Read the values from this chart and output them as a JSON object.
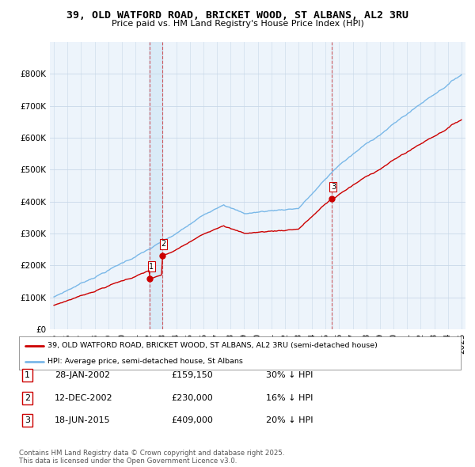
{
  "title1": "39, OLD WATFORD ROAD, BRICKET WOOD, ST ALBANS, AL2 3RU",
  "title2": "Price paid vs. HM Land Registry's House Price Index (HPI)",
  "legend_line1": "39, OLD WATFORD ROAD, BRICKET WOOD, ST ALBANS, AL2 3RU (semi-detached house)",
  "legend_line2": "HPI: Average price, semi-detached house, St Albans",
  "footer": "Contains HM Land Registry data © Crown copyright and database right 2025.\nThis data is licensed under the Open Government Licence v3.0.",
  "transactions": [
    {
      "num": 1,
      "date": "28-JAN-2002",
      "price": 159150,
      "pct": "30% ↓ HPI",
      "x_year": 2002.07
    },
    {
      "num": 2,
      "date": "12-DEC-2002",
      "price": 230000,
      "pct": "16% ↓ HPI",
      "x_year": 2002.95
    },
    {
      "num": 3,
      "date": "18-JUN-2015",
      "price": 409000,
      "pct": "20% ↓ HPI",
      "x_year": 2015.46
    }
  ],
  "sale_color": "#cc0000",
  "hpi_color": "#7ab8e8",
  "vline_color": "#cc0000",
  "shade_color": "#d8eaf7",
  "background_color": "#ffffff",
  "plot_bg_color": "#edf4fb",
  "grid_color": "#c8d8e8",
  "ylim": [
    0,
    900000
  ],
  "xlim_start": 1994.7,
  "xlim_end": 2025.3
}
